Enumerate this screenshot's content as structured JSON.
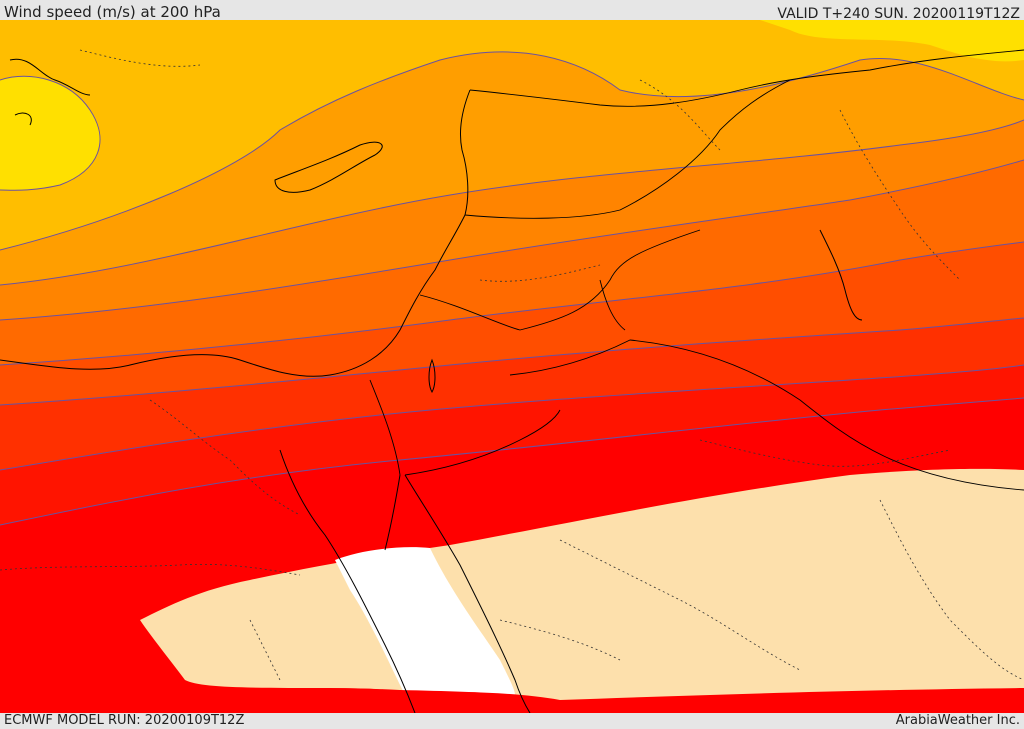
{
  "header": {
    "title": "Wind speed (m/s) at 200 hPa",
    "valid": "VALID T+240 SUN. 20200119T12Z"
  },
  "footer": {
    "model_run": "ECMWF MODEL RUN: 20200109T12Z",
    "credit": "ArabiaWeather Inc."
  },
  "map": {
    "bands": [
      {
        "color": "#ffe000"
      },
      {
        "color": "#ffbe00"
      },
      {
        "color": "#ff9e00"
      },
      {
        "color": "#ff8400"
      },
      {
        "color": "#ff6a00"
      },
      {
        "color": "#ff4e00"
      },
      {
        "color": "#ff3000"
      },
      {
        "color": "#ff1400"
      },
      {
        "color": "#ff0000"
      },
      {
        "color": "#fde0ac"
      },
      {
        "color": "#ffffff"
      }
    ],
    "contour_color": "#6a52a0",
    "border_color": "#000000"
  }
}
